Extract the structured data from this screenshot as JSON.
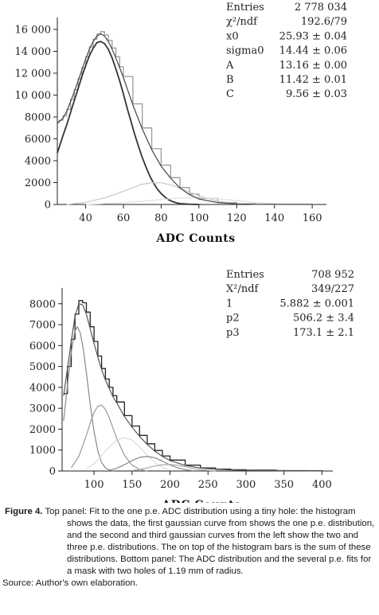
{
  "chart_data": [
    {
      "type": "line",
      "title": "",
      "xlabel": "ADC Counts",
      "ylabel": "",
      "xlim": [
        25,
        165
      ],
      "ylim": [
        0,
        16800
      ],
      "x_ticks": [
        40,
        60,
        80,
        100,
        120,
        140,
        160
      ],
      "x_tick_labels": [
        "40",
        "60",
        "80",
        "100",
        "120",
        "140",
        "160"
      ],
      "y_ticks": [
        0,
        2000,
        4000,
        6000,
        8000,
        10000,
        12000,
        14000,
        16000
      ],
      "y_tick_labels": [
        "0",
        "2000",
        "4000",
        "6000",
        "8000",
        "10 000",
        "12 000",
        "14 000",
        "16 000"
      ],
      "grid": false,
      "stats": [
        {
          "key": "Entries",
          "value": "2 778 034"
        },
        {
          "key": "χ²/ndf",
          "value": "192.6/79"
        },
        {
          "key": "x0",
          "value": "25.93 ± 0.04"
        },
        {
          "key": "sigma0",
          "value": "14.44 ± 0.06"
        },
        {
          "key": "A",
          "value": "13.16 ± 0.00"
        },
        {
          "key": "B",
          "value": "11.42 ± 0.01"
        },
        {
          "key": "C",
          "value": "9.56 ± 0.03"
        }
      ],
      "series": [
        {
          "role": "data histogram",
          "color": "#9a9a9a",
          "x": [
            25,
            26,
            28,
            30,
            32,
            34,
            36,
            38,
            40,
            42,
            44,
            46,
            48,
            50,
            52,
            54,
            56,
            58,
            60,
            65,
            70,
            75,
            80,
            85,
            90,
            95,
            100,
            110,
            120,
            130,
            140,
            150,
            160
          ],
          "y": [
            7600,
            7700,
            8100,
            8700,
            9600,
            10500,
            11500,
            12500,
            13500,
            14400,
            15100,
            15600,
            15800,
            15500,
            15000,
            14300,
            13500,
            12600,
            11700,
            9200,
            7000,
            5100,
            3600,
            2450,
            1550,
            950,
            550,
            180,
            60,
            25,
            15,
            10,
            8
          ]
        },
        {
          "role": "first gaussian (one p.e.)",
          "color": "#333333",
          "x": [
            25,
            28,
            30,
            32,
            34,
            36,
            38,
            40,
            42,
            44,
            46,
            48,
            50,
            52,
            54,
            56,
            58,
            60,
            62,
            64,
            66,
            68,
            70,
            72,
            74,
            76,
            78,
            80,
            82,
            84,
            86,
            88,
            90,
            95,
            100
          ],
          "y": [
            4700,
            6300,
            7300,
            8400,
            9500,
            10600,
            11700,
            12700,
            13600,
            14300,
            14800,
            14900,
            14700,
            14200,
            13400,
            12400,
            11300,
            10100,
            8800,
            7600,
            6400,
            5300,
            4300,
            3400,
            2600,
            1950,
            1400,
            1000,
            680,
            430,
            260,
            150,
            80,
            20,
            0
          ]
        },
        {
          "role": "second gaussian (two p.e.)",
          "color": "#c8c8c8",
          "x": [
            30,
            40,
            50,
            60,
            65,
            70,
            75,
            80,
            85,
            90,
            95,
            100,
            110,
            120,
            130,
            140
          ],
          "y": [
            0,
            200,
            600,
            1200,
            1550,
            1850,
            2000,
            1980,
            1800,
            1500,
            1150,
            800,
            300,
            80,
            15,
            0
          ]
        },
        {
          "role": "third gaussian (three p.e.)",
          "color": "#e0e0e0",
          "x": [
            40,
            60,
            80,
            90,
            100,
            110,
            120,
            130,
            140,
            150
          ],
          "y": [
            0,
            150,
            450,
            600,
            620,
            520,
            360,
            200,
            80,
            20
          ]
        },
        {
          "role": "sum of fit",
          "color": "#444444",
          "x": [
            25,
            28,
            30,
            32,
            34,
            36,
            38,
            40,
            42,
            44,
            46,
            48,
            50,
            52,
            54,
            56,
            58,
            60,
            65,
            70,
            75,
            80,
            85,
            90,
            95,
            100,
            110,
            120,
            130,
            140,
            150,
            160
          ],
          "y": [
            7400,
            7900,
            8500,
            9400,
            10300,
            11300,
            12300,
            13300,
            14200,
            14900,
            15400,
            15600,
            15400,
            14900,
            14200,
            13400,
            12500,
            11600,
            9100,
            6900,
            5000,
            3500,
            2400,
            1500,
            900,
            500,
            170,
            55,
            22,
            12,
            8,
            6
          ]
        }
      ]
    },
    {
      "type": "line",
      "title": "",
      "xlabel": "ADC Counts",
      "ylabel": "",
      "xlim": [
        58,
        408
      ],
      "ylim": [
        0,
        8600
      ],
      "x_ticks": [
        100,
        150,
        200,
        250,
        300,
        350,
        400
      ],
      "x_tick_labels": [
        "100",
        "150",
        "200",
        "250",
        "300",
        "350",
        "400"
      ],
      "y_ticks": [
        0,
        1000,
        2000,
        3000,
        4000,
        5000,
        6000,
        7000,
        8000
      ],
      "y_tick_labels": [
        "0",
        "1000",
        "2000",
        "3000",
        "4000",
        "5000",
        "6000",
        "7000",
        "8000"
      ],
      "grid": false,
      "stats": [
        {
          "key": "Entries",
          "value": "708 952"
        },
        {
          "key": "X²/ndf",
          "value": "349/227"
        },
        {
          "key": "1",
          "value": "5.882 ± 0.001"
        },
        {
          "key": "p2",
          "value": "506.2 ± 3.4"
        },
        {
          "key": "p3",
          "value": "173.1 ± 2.1"
        }
      ],
      "series": [
        {
          "role": "data histogram",
          "color": "#222222",
          "x": [
            60,
            65,
            70,
            75,
            80,
            85,
            90,
            95,
            100,
            105,
            110,
            115,
            120,
            125,
            130,
            140,
            150,
            160,
            170,
            180,
            190,
            200,
            220,
            240,
            260,
            280,
            300,
            340,
            380,
            400
          ],
          "y": [
            3700,
            5000,
            6300,
            7500,
            8150,
            8050,
            7600,
            6900,
            6200,
            5500,
            4900,
            4400,
            4000,
            3600,
            3300,
            2650,
            2150,
            1700,
            1300,
            980,
            720,
            520,
            280,
            150,
            90,
            60,
            40,
            20,
            10,
            8
          ]
        },
        {
          "role": "gaussian 1",
          "color": "#888888",
          "x": [
            60,
            65,
            70,
            75,
            78,
            82,
            86,
            90,
            95,
            100,
            105,
            110,
            115,
            120,
            125
          ],
          "y": [
            2400,
            4100,
            5700,
            6700,
            6900,
            6600,
            5800,
            4700,
            3200,
            1900,
            950,
            400,
            150,
            50,
            0
          ]
        },
        {
          "role": "gaussian 2",
          "color": "#999999",
          "x": [
            70,
            80,
            90,
            95,
            100,
            105,
            110,
            115,
            120,
            125,
            130,
            140,
            150,
            160,
            170
          ],
          "y": [
            150,
            700,
            1700,
            2300,
            2800,
            3100,
            3150,
            2950,
            2550,
            2050,
            1550,
            750,
            280,
            80,
            0
          ]
        },
        {
          "role": "gaussian 3",
          "color": "#dddddd",
          "x": [
            90,
            100,
            110,
            120,
            130,
            140,
            150,
            160,
            170,
            180,
            190,
            200
          ],
          "y": [
            100,
            350,
            750,
            1150,
            1480,
            1600,
            1480,
            1150,
            750,
            400,
            170,
            50
          ]
        },
        {
          "role": "gaussian 4",
          "color": "#888888",
          "x": [
            120,
            130,
            140,
            150,
            160,
            170,
            180,
            190,
            200,
            210,
            220,
            230
          ],
          "y": [
            30,
            130,
            300,
            500,
            650,
            700,
            630,
            470,
            290,
            150,
            60,
            15
          ]
        },
        {
          "role": "gaussian 5",
          "color": "#aaaaaa",
          "x": [
            150,
            160,
            170,
            180,
            190,
            200,
            210,
            220,
            230,
            240,
            250,
            260
          ],
          "y": [
            20,
            70,
            150,
            240,
            300,
            310,
            270,
            200,
            120,
            60,
            25,
            5
          ]
        },
        {
          "role": "sum of fit",
          "color": "#555555",
          "x": [
            60,
            65,
            70,
            75,
            80,
            85,
            90,
            95,
            100,
            105,
            110,
            115,
            120,
            125,
            130,
            140,
            150,
            160,
            170,
            180,
            190,
            200,
            220,
            240,
            260,
            280,
            300,
            340,
            380,
            400
          ],
          "y": [
            3600,
            4900,
            6200,
            7400,
            8000,
            7950,
            7500,
            6800,
            6100,
            5450,
            4850,
            4350,
            3950,
            3550,
            3250,
            2600,
            2100,
            1650,
            1270,
            950,
            700,
            500,
            270,
            140,
            85,
            55,
            35,
            18,
            9,
            6
          ]
        }
      ]
    }
  ],
  "caption": {
    "label": "Figure 4.",
    "text": "Top panel: Fit to the one p.e. ADC distribution using a tiny hole: the histogram shows the data, the first gaussian curve from shows the one p.e. distribution, and the second and third gaussian curves from the left show the two and three p.e. distributions. The on top of the histogram bars is the sum of these distributions. Bottom panel: The ADC distribution and the several p.e. fits for a mask with two holes of 1.19 mm of radius.",
    "source": "Source: Author's own elaboration."
  }
}
